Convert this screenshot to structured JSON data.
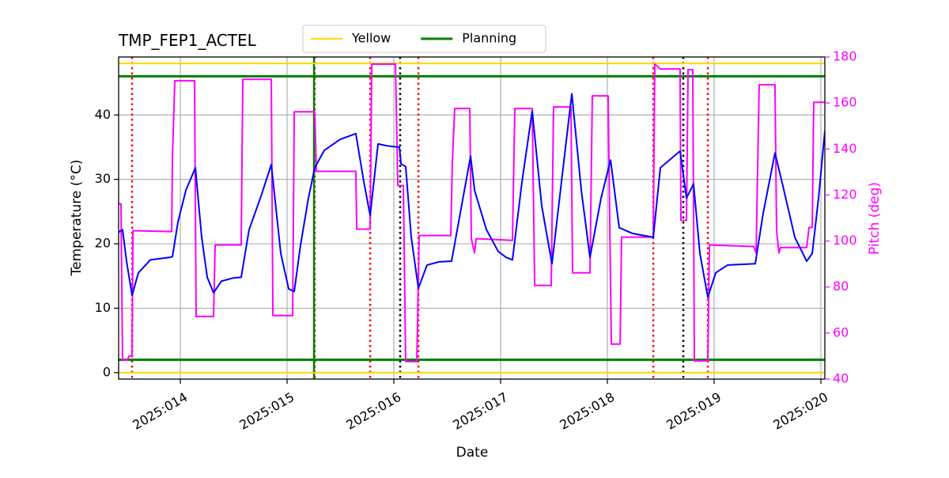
{
  "chart_data": {
    "type": "line",
    "title": "TMP_FEP1_ACTEL",
    "xlabel": "Date",
    "ylabel": "Temperature (°C)",
    "y2label": "Pitch (deg)",
    "xlim": [
      13.422,
      20.037
    ],
    "xticks": [
      {
        "value": 14,
        "label": "2025:014"
      },
      {
        "value": 15,
        "label": "2025:015"
      },
      {
        "value": 16,
        "label": "2025:016"
      },
      {
        "value": 17,
        "label": "2025:017"
      },
      {
        "value": 18,
        "label": "2025:018"
      },
      {
        "value": 19,
        "label": "2025:019"
      },
      {
        "value": 20,
        "label": "2025:020"
      }
    ],
    "ylim": [
      -1,
      49
    ],
    "yticks": [
      0,
      10,
      20,
      30,
      40
    ],
    "y2lim": [
      40,
      180
    ],
    "y2ticks": [
      40,
      60,
      80,
      100,
      120,
      140,
      160,
      180
    ],
    "grid": true,
    "legend": "upper center",
    "hlines": [
      {
        "name": "Yellow",
        "color": "#ffd700",
        "values": [
          0,
          48
        ]
      },
      {
        "name": "Planning",
        "color": "#008000",
        "values": [
          2,
          46
        ]
      }
    ],
    "vlines": [
      {
        "color": "#ff0000",
        "style": "dotted",
        "x": [
          13.548,
          15.259,
          15.778,
          16.23,
          18.43,
          18.941
        ]
      },
      {
        "color": "#000000",
        "style": "dotted",
        "x": [
          16.059,
          18.711
        ]
      },
      {
        "color": "#008000",
        "style": "solid",
        "x": [
          15.252
        ]
      }
    ],
    "series": [
      {
        "color": "#ff00ff",
        "axis": "y2",
        "x": [
          13.422,
          13.444,
          13.459,
          13.504,
          13.519,
          13.548,
          13.556,
          13.919,
          13.926,
          13.948,
          14.133,
          14.148,
          14.311,
          14.326,
          14.57,
          14.585,
          14.852,
          14.867,
          15.052,
          15.067,
          15.259,
          15.274,
          15.644,
          15.652,
          15.778,
          15.793,
          16.015,
          16.037,
          16.089,
          16.111,
          16.215,
          16.237,
          16.533,
          16.548,
          16.57,
          16.711,
          16.726,
          16.756,
          16.77,
          17.111,
          17.133,
          17.296,
          17.319,
          17.474,
          17.496,
          17.659,
          17.674,
          17.837,
          17.859,
          18.007,
          18.037,
          18.119,
          18.133,
          18.43,
          18.444,
          18.496,
          18.681,
          18.689,
          18.741,
          18.756,
          18.8,
          18.815,
          18.941,
          18.956,
          19.37,
          19.393,
          19.422,
          19.57,
          19.585,
          19.607,
          19.622,
          19.867,
          19.889,
          19.919,
          19.933,
          20.037
        ],
        "values": [
          116.2,
          116.2,
          48.3,
          48.3,
          50.0,
          50.0,
          104.5,
          104.1,
          136.2,
          169.7,
          169.7,
          67.2,
          67.2,
          98.3,
          98.3,
          170.3,
          170.3,
          67.6,
          67.6,
          156.2,
          156.2,
          130.3,
          130.3,
          105.2,
          105.2,
          176.9,
          176.9,
          124.1,
          124.1,
          47.6,
          47.6,
          102.4,
          102.4,
          134.5,
          157.6,
          157.6,
          101.0,
          94.8,
          101.0,
          100.3,
          157.6,
          157.6,
          80.7,
          80.7,
          158.3,
          158.3,
          86.2,
          86.2,
          163.1,
          163.1,
          55.2,
          55.2,
          101.7,
          101.7,
          176.9,
          174.8,
          174.8,
          109.0,
          109.0,
          174.5,
          174.5,
          47.9,
          47.9,
          98.3,
          97.6,
          94.8,
          167.9,
          167.9,
          104.5,
          94.8,
          97.2,
          97.2,
          105.9,
          105.9,
          160.3,
          160.3
        ]
      },
      {
        "color": "#0000ff",
        "x": [
          13.422,
          13.459,
          13.496,
          13.548,
          13.607,
          13.719,
          13.904,
          13.926,
          13.978,
          14.052,
          14.141,
          14.2,
          14.252,
          14.311,
          14.385,
          14.496,
          14.57,
          14.644,
          14.756,
          14.852,
          14.941,
          15.015,
          15.067,
          15.126,
          15.2,
          15.259,
          15.348,
          15.496,
          15.644,
          15.719,
          15.778,
          15.852,
          15.941,
          16.052,
          16.067,
          16.111,
          16.163,
          16.23,
          16.311,
          16.422,
          16.541,
          16.607,
          16.719,
          16.756,
          16.867,
          16.978,
          17.052,
          17.111,
          17.2,
          17.296,
          17.385,
          17.481,
          17.57,
          17.667,
          17.756,
          17.837,
          17.941,
          18.03,
          18.111,
          18.237,
          18.43,
          18.496,
          18.681,
          18.741,
          18.807,
          18.867,
          18.941,
          19.015,
          19.126,
          19.385,
          19.459,
          19.57,
          19.644,
          19.756,
          19.867,
          19.919,
          19.978,
          20.037
        ],
        "values": [
          21.8,
          22.2,
          17.3,
          12.0,
          15.5,
          17.5,
          17.9,
          18.0,
          23.4,
          28.3,
          31.8,
          21.0,
          14.8,
          12.4,
          14.2,
          14.7,
          14.8,
          22.2,
          27.4,
          32.3,
          18.5,
          13.0,
          12.6,
          19.8,
          27.1,
          31.8,
          34.5,
          36.2,
          37.1,
          29.6,
          24.4,
          35.5,
          35.2,
          35.0,
          32.4,
          32.0,
          21.0,
          13.1,
          16.7,
          17.2,
          17.3,
          23.4,
          33.6,
          28.3,
          22.2,
          18.8,
          17.9,
          17.5,
          29.6,
          40.6,
          25.9,
          16.9,
          29.6,
          43.3,
          28.3,
          17.9,
          27.1,
          33.0,
          22.5,
          21.6,
          21.0,
          31.8,
          34.4,
          27.1,
          29.3,
          18.5,
          11.7,
          15.5,
          16.7,
          16.9,
          24.7,
          34.1,
          29.0,
          21.0,
          17.3,
          18.5,
          27.1,
          37.5
        ]
      }
    ]
  }
}
